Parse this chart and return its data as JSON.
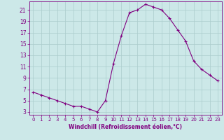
{
  "x": [
    0,
    1,
    2,
    3,
    4,
    5,
    6,
    7,
    8,
    9,
    10,
    11,
    12,
    13,
    14,
    15,
    16,
    17,
    18,
    19,
    20,
    21,
    22,
    23
  ],
  "y": [
    6.5,
    6.0,
    5.5,
    5.0,
    4.5,
    4.0,
    4.0,
    3.5,
    3.0,
    5.0,
    11.5,
    16.5,
    20.5,
    21.0,
    22.0,
    21.5,
    21.0,
    19.5,
    17.5,
    15.5,
    12.0,
    10.5,
    9.5,
    8.5
  ],
  "xlabel": "Windchill (Refroidissement éolien,°C)",
  "ylim_min": 2.5,
  "ylim_max": 22.5,
  "xlim_min": -0.5,
  "xlim_max": 23.5,
  "yticks": [
    3,
    5,
    7,
    9,
    11,
    13,
    15,
    17,
    19,
    21
  ],
  "xticks": [
    0,
    1,
    2,
    3,
    4,
    5,
    6,
    7,
    8,
    9,
    10,
    11,
    12,
    13,
    14,
    15,
    16,
    17,
    18,
    19,
    20,
    21,
    22,
    23
  ],
  "line_color": "#800080",
  "marker": "+",
  "bg_color": "#cce8e8",
  "grid_color": "#aacccc",
  "tick_color": "#800080",
  "xlabel_color": "#800080",
  "spine_color": "#800080"
}
